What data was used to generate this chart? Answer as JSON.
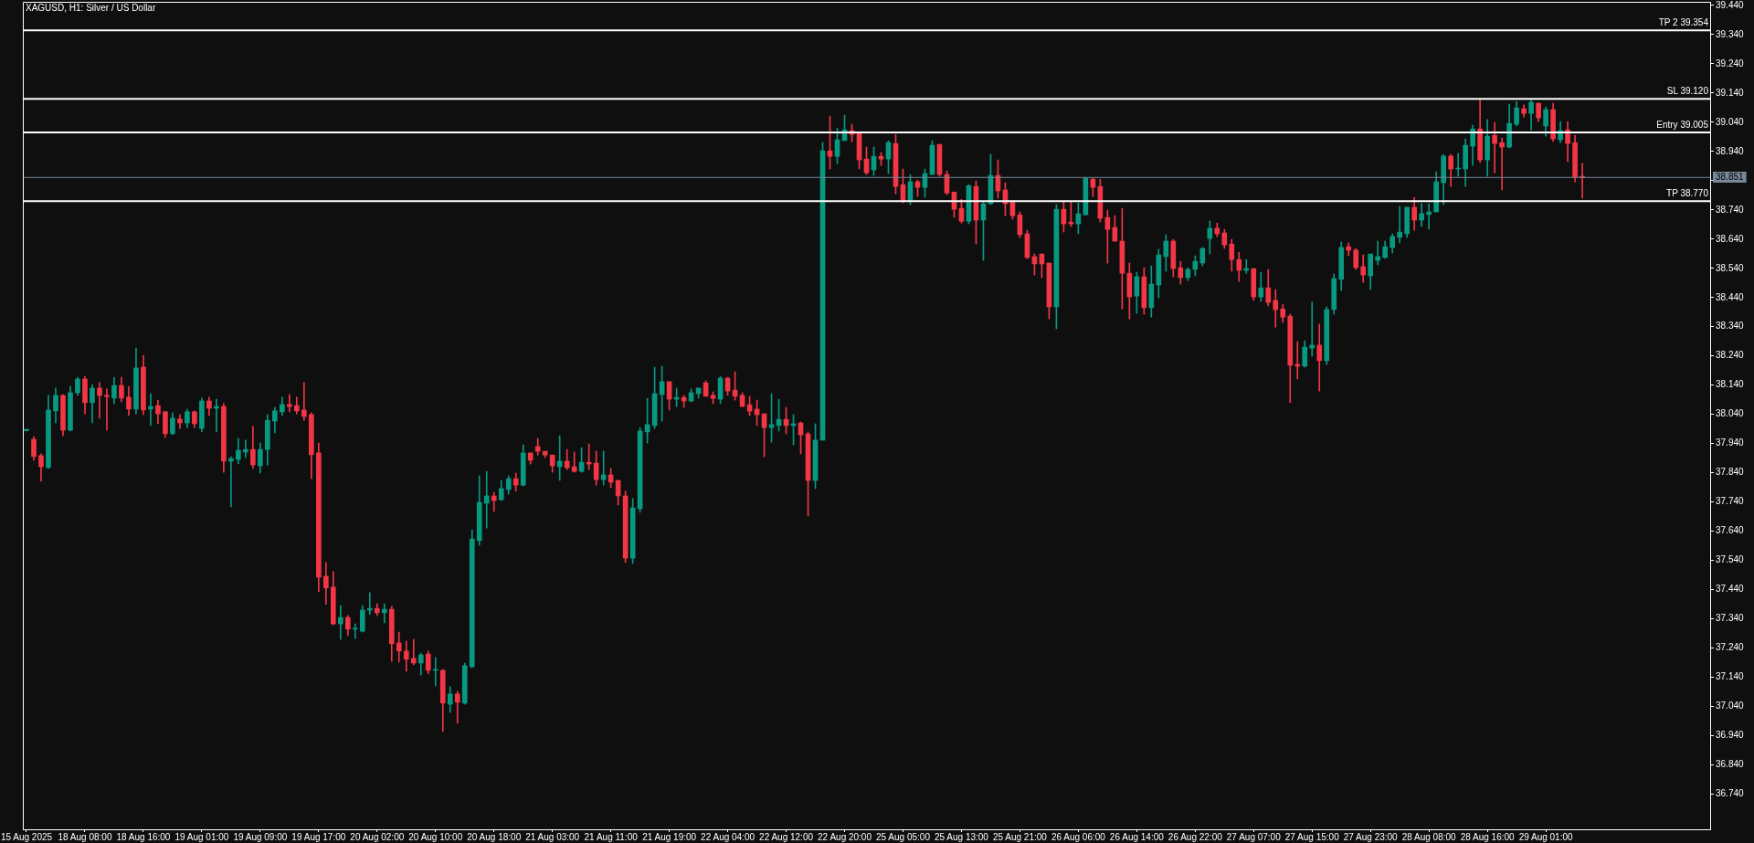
{
  "chart_data": {
    "type": "candlestick",
    "title": "XAGUSD, H1: Silver / US Dollar",
    "categories": [
      "15 Aug 2025",
      null,
      null,
      null,
      null,
      null,
      null,
      null,
      "18 Aug 08:00",
      null,
      null,
      null,
      null,
      null,
      null,
      null,
      "18 Aug 16:00",
      null,
      null,
      null,
      null,
      null,
      null,
      null,
      "19 Aug 01:00",
      null,
      null,
      null,
      null,
      null,
      null,
      null,
      "19 Aug 09:00",
      null,
      null,
      null,
      null,
      null,
      null,
      null,
      "19 Aug 17:00",
      null,
      null,
      null,
      null,
      null,
      null,
      null,
      "20 Aug 02:00",
      null,
      null,
      null,
      null,
      null,
      null,
      null,
      "20 Aug 10:00",
      null,
      null,
      null,
      null,
      null,
      null,
      null,
      "20 Aug 18:00",
      null,
      null,
      null,
      null,
      null,
      null,
      null,
      "21 Aug 03:00",
      null,
      null,
      null,
      null,
      null,
      null,
      null,
      "21 Aug 11:00",
      null,
      null,
      null,
      null,
      null,
      null,
      null,
      "21 Aug 19:00",
      null,
      null,
      null,
      null,
      null,
      null,
      null,
      "22 Aug 04:00",
      null,
      null,
      null,
      null,
      null,
      null,
      null,
      "22 Aug 12:00",
      null,
      null,
      null,
      null,
      null,
      null,
      null,
      "22 Aug 20:00",
      null,
      null,
      null,
      null,
      null,
      null,
      null,
      "25 Aug 05:00",
      null,
      null,
      null,
      null,
      null,
      null,
      null,
      "25 Aug 13:00",
      null,
      null,
      null,
      null,
      null,
      null,
      null,
      "25 Aug 21:00",
      null,
      null,
      null,
      null,
      null,
      null,
      null,
      "26 Aug 06:00",
      null,
      null,
      null,
      null,
      null,
      null,
      null,
      "26 Aug 14:00",
      null,
      null,
      null,
      null,
      null,
      null,
      null,
      "26 Aug 22:00",
      null,
      null,
      null,
      null,
      null,
      null,
      null,
      "27 Aug 07:00",
      null,
      null,
      null,
      null,
      null,
      null,
      null,
      "27 Aug 15:00",
      null,
      null,
      null,
      null,
      null,
      null,
      null,
      "27 Aug 23:00",
      null,
      null,
      null,
      null,
      null,
      null,
      null,
      "28 Aug 08:00",
      null,
      null,
      null,
      null,
      null,
      null,
      null,
      "28 Aug 16:00",
      null,
      null,
      null,
      null,
      null,
      null,
      null,
      "29 Aug 01:00",
      null,
      null,
      null,
      null,
      null,
      null,
      null,
      null,
      null,
      null,
      null,
      null,
      null,
      null,
      null,
      null,
      null,
      null,
      null,
      null,
      null,
      null
    ],
    "ohlc": [
      [
        37.984,
        37.989,
        37.984,
        37.989
      ],
      [
        37.955,
        37.964,
        37.883,
        37.896
      ],
      [
        37.899,
        37.905,
        37.811,
        37.861
      ],
      [
        37.858,
        38.105,
        37.855,
        38.055
      ],
      [
        38.052,
        38.13,
        38.011,
        38.105
      ],
      [
        38.105,
        38.108,
        37.967,
        37.986
      ],
      [
        37.986,
        38.136,
        37.983,
        38.114
      ],
      [
        38.114,
        38.167,
        38.105,
        38.161
      ],
      [
        38.161,
        38.17,
        38.042,
        38.08
      ],
      [
        38.08,
        38.142,
        38.011,
        38.13
      ],
      [
        38.13,
        38.149,
        38.027,
        38.105
      ],
      [
        38.105,
        38.127,
        37.986,
        38.101
      ],
      [
        38.096,
        38.167,
        38.077,
        38.139
      ],
      [
        38.139,
        38.167,
        38.083,
        38.096
      ],
      [
        38.099,
        38.136,
        38.036,
        38.058
      ],
      [
        38.058,
        38.267,
        38.042,
        38.199
      ],
      [
        38.202,
        38.242,
        38.039,
        38.055
      ],
      [
        38.058,
        38.111,
        38.002,
        38.067
      ],
      [
        38.07,
        38.089,
        38.008,
        38.042
      ],
      [
        38.049,
        38.05,
        37.961,
        37.974
      ],
      [
        37.974,
        38.046,
        37.971,
        38.027
      ],
      [
        38.024,
        38.039,
        37.992,
        38.011
      ],
      [
        38.011,
        38.058,
        37.995,
        38.049
      ],
      [
        38.049,
        38.052,
        37.995,
        38.008
      ],
      [
        37.992,
        38.096,
        37.98,
        38.086
      ],
      [
        38.086,
        38.099,
        38.036,
        38.061
      ],
      [
        38.061,
        38.092,
        37.98,
        38.067
      ],
      [
        38.067,
        38.077,
        37.842,
        37.88
      ],
      [
        37.88,
        37.895,
        37.724,
        37.889
      ],
      [
        37.886,
        37.958,
        37.871,
        37.917
      ],
      [
        37.911,
        37.952,
        37.892,
        37.92
      ],
      [
        37.92,
        37.999,
        37.855,
        37.867
      ],
      [
        37.864,
        37.942,
        37.839,
        37.92
      ],
      [
        37.92,
        38.039,
        37.867,
        38.02
      ],
      [
        38.017,
        38.064,
        37.977,
        38.052
      ],
      [
        38.049,
        38.099,
        38.036,
        38.074
      ],
      [
        38.074,
        38.108,
        38.049,
        38.067
      ],
      [
        38.07,
        38.099,
        38.042,
        38.052
      ],
      [
        38.055,
        38.149,
        38.02,
        38.033
      ],
      [
        38.039,
        38.046,
        37.82,
        37.902
      ],
      [
        37.908,
        37.942,
        37.433,
        37.483
      ],
      [
        37.486,
        37.533,
        37.39,
        37.446
      ],
      [
        37.449,
        37.502,
        37.32,
        37.323
      ],
      [
        37.323,
        37.386,
        37.27,
        37.345
      ],
      [
        37.345,
        37.352,
        37.283,
        37.305
      ],
      [
        37.305,
        37.323,
        37.273,
        37.308
      ],
      [
        37.298,
        37.386,
        37.295,
        37.37
      ],
      [
        37.37,
        37.43,
        37.355,
        37.376
      ],
      [
        37.376,
        37.392,
        37.352,
        37.361
      ],
      [
        37.361,
        37.392,
        37.327,
        37.373
      ],
      [
        37.373,
        37.383,
        37.195,
        37.255
      ],
      [
        37.258,
        37.295,
        37.192,
        37.23
      ],
      [
        37.23,
        37.264,
        37.161,
        37.202
      ],
      [
        37.205,
        37.27,
        37.183,
        37.189
      ],
      [
        37.189,
        37.223,
        37.148,
        37.217
      ],
      [
        37.22,
        37.23,
        37.152,
        37.164
      ],
      [
        37.164,
        37.208,
        37.111,
        37.167
      ],
      [
        37.164,
        37.167,
        36.955,
        37.052
      ],
      [
        37.048,
        37.108,
        37.02,
        37.083
      ],
      [
        37.083,
        37.092,
        36.983,
        37.055
      ],
      [
        37.052,
        37.189,
        37.048,
        37.18
      ],
      [
        37.177,
        37.645,
        37.173,
        37.614
      ],
      [
        37.608,
        37.83,
        37.592,
        37.739
      ],
      [
        37.736,
        37.845,
        37.651,
        37.761
      ],
      [
        37.761,
        37.773,
        37.708,
        37.745
      ],
      [
        37.748,
        37.814,
        37.745,
        37.786
      ],
      [
        37.783,
        37.83,
        37.767,
        37.82
      ],
      [
        37.82,
        37.839,
        37.777,
        37.798
      ],
      [
        37.798,
        37.936,
        37.795,
        37.908
      ],
      [
        37.908,
        37.908,
        37.87,
        37.883
      ],
      [
        37.93,
        37.958,
        37.901,
        37.914
      ],
      [
        37.914,
        37.914,
        37.892,
        37.901
      ],
      [
        37.901,
        37.901,
        37.842,
        37.864
      ],
      [
        37.861,
        37.967,
        37.814,
        37.88
      ],
      [
        37.88,
        37.92,
        37.851,
        37.858
      ],
      [
        37.861,
        37.911,
        37.842,
        37.845
      ],
      [
        37.845,
        37.926,
        37.842,
        37.876
      ],
      [
        37.876,
        37.939,
        37.851,
        37.87
      ],
      [
        37.873,
        37.914,
        37.798,
        37.817
      ],
      [
        37.817,
        37.914,
        37.798,
        37.833
      ],
      [
        37.833,
        37.855,
        37.789,
        37.808
      ],
      [
        37.814,
        37.814,
        37.73,
        37.761
      ],
      [
        37.761,
        37.777,
        37.533,
        37.548
      ],
      [
        37.548,
        37.752,
        37.53,
        37.72
      ],
      [
        37.717,
        37.995,
        37.705,
        37.983
      ],
      [
        37.98,
        38.095,
        37.942,
        38.005
      ],
      [
        38.002,
        38.202,
        37.992,
        38.111
      ],
      [
        38.108,
        38.205,
        38.017,
        38.152
      ],
      [
        38.152,
        38.152,
        38.055,
        38.092
      ],
      [
        38.092,
        38.13,
        38.067,
        38.098
      ],
      [
        38.098,
        38.105,
        38.064,
        38.086
      ],
      [
        38.086,
        38.127,
        38.083,
        38.114
      ],
      [
        38.111,
        38.13,
        38.095,
        38.13
      ],
      [
        38.148,
        38.155,
        38.102,
        38.102
      ],
      [
        38.105,
        38.117,
        38.077,
        38.095
      ],
      [
        38.092,
        38.17,
        38.077,
        38.164
      ],
      [
        38.164,
        38.167,
        38.105,
        38.12
      ],
      [
        38.123,
        38.186,
        38.089,
        38.102
      ],
      [
        38.105,
        38.114,
        38.067,
        38.067
      ],
      [
        38.073,
        38.102,
        38.036,
        38.051
      ],
      [
        38.058,
        38.089,
        38.002,
        38.039
      ],
      [
        38.042,
        38.042,
        37.895,
        37.995
      ],
      [
        37.995,
        38.111,
        37.945,
        38.005
      ],
      [
        38.002,
        38.092,
        37.983,
        38.023
      ],
      [
        38.023,
        38.064,
        37.973,
        38.002
      ],
      [
        38.002,
        38.039,
        37.936,
        38.008
      ],
      [
        38.011,
        38.014,
        37.905,
        37.97
      ],
      [
        37.973,
        37.98,
        37.692,
        37.814
      ],
      [
        37.814,
        38.008,
        37.786,
        37.952
      ],
      [
        37.952,
        38.97,
        37.952,
        38.942
      ],
      [
        38.942,
        39.061,
        38.88,
        38.923
      ],
      [
        38.923,
        39.02,
        38.898,
        38.98
      ],
      [
        38.977,
        39.064,
        38.977,
        39.014
      ],
      [
        39.011,
        39.033,
        38.973,
        38.998
      ],
      [
        39.001,
        39.001,
        38.88,
        38.911
      ],
      [
        38.914,
        38.955,
        38.861,
        38.867
      ],
      [
        38.877,
        38.955,
        38.858,
        38.923
      ],
      [
        38.923,
        38.936,
        38.892,
        38.914
      ],
      [
        38.914,
        38.977,
        38.864,
        38.97
      ],
      [
        38.967,
        38.998,
        38.795,
        38.82
      ],
      [
        38.826,
        38.88,
        38.764,
        38.77
      ],
      [
        38.77,
        38.861,
        38.758,
        38.836
      ],
      [
        38.836,
        38.842,
        38.786,
        38.817
      ],
      [
        38.817,
        38.88,
        38.783,
        38.864
      ],
      [
        38.861,
        38.977,
        38.861,
        38.961
      ],
      [
        38.964,
        38.964,
        38.855,
        38.861
      ],
      [
        38.861,
        38.873,
        38.792,
        38.798
      ],
      [
        38.801,
        38.801,
        38.714,
        38.742
      ],
      [
        38.745,
        38.776,
        38.695,
        38.701
      ],
      [
        38.701,
        38.826,
        38.692,
        38.823
      ],
      [
        38.82,
        38.839,
        38.623,
        38.705
      ],
      [
        38.705,
        38.77,
        38.567,
        38.761
      ],
      [
        38.761,
        38.93,
        38.758,
        38.858
      ],
      [
        38.858,
        38.911,
        38.78,
        38.805
      ],
      [
        38.808,
        38.833,
        38.72,
        38.761
      ],
      [
        38.77,
        38.77,
        38.708,
        38.72
      ],
      [
        38.723,
        38.733,
        38.645,
        38.655
      ],
      [
        38.658,
        38.67,
        38.573,
        38.577
      ],
      [
        38.58,
        38.589,
        38.517,
        38.555
      ],
      [
        38.589,
        38.589,
        38.508,
        38.555
      ],
      [
        38.558,
        38.558,
        38.367,
        38.408
      ],
      [
        38.408,
        38.758,
        38.333,
        38.742
      ],
      [
        38.742,
        38.77,
        38.664,
        38.692
      ],
      [
        38.698,
        38.77,
        38.683,
        38.692
      ],
      [
        38.692,
        38.764,
        38.658,
        38.727
      ],
      [
        38.723,
        38.851,
        38.723,
        38.848
      ],
      [
        38.845,
        38.848,
        38.786,
        38.817
      ],
      [
        38.82,
        38.845,
        38.698,
        38.711
      ],
      [
        38.714,
        38.739,
        38.558,
        38.673
      ],
      [
        38.68,
        38.72,
        38.633,
        38.633
      ],
      [
        38.633,
        38.745,
        38.401,
        38.523
      ],
      [
        38.523,
        38.558,
        38.367,
        38.442
      ],
      [
        38.445,
        38.526,
        38.386,
        38.511
      ],
      [
        38.511,
        38.542,
        38.383,
        38.405
      ],
      [
        38.405,
        38.548,
        38.373,
        38.486
      ],
      [
        38.483,
        38.605,
        38.439,
        38.586
      ],
      [
        38.58,
        38.655,
        38.53,
        38.633
      ],
      [
        38.633,
        38.639,
        38.511,
        38.539
      ],
      [
        38.542,
        38.564,
        38.486,
        38.508
      ],
      [
        38.508,
        38.542,
        38.498,
        38.536
      ],
      [
        38.536,
        38.583,
        38.514,
        38.564
      ],
      [
        38.558,
        38.611,
        38.548,
        38.608
      ],
      [
        38.642,
        38.702,
        38.589,
        38.677
      ],
      [
        38.677,
        38.695,
        38.648,
        38.658
      ],
      [
        38.661,
        38.673,
        38.608,
        38.62
      ],
      [
        38.623,
        38.639,
        38.53,
        38.57
      ],
      [
        38.57,
        38.595,
        38.495,
        38.533
      ],
      [
        38.533,
        38.57,
        38.523,
        38.539
      ],
      [
        38.539,
        38.539,
        38.43,
        38.442
      ],
      [
        38.442,
        38.526,
        38.427,
        38.473
      ],
      [
        38.473,
        38.536,
        38.411,
        38.423
      ],
      [
        38.43,
        38.467,
        38.339,
        38.398
      ],
      [
        38.401,
        38.417,
        38.355,
        38.373
      ],
      [
        38.376,
        38.383,
        38.08,
        38.208
      ],
      [
        38.211,
        38.289,
        38.161,
        38.205
      ],
      [
        38.205,
        38.292,
        38.202,
        38.27
      ],
      [
        38.267,
        38.424,
        38.239,
        38.277
      ],
      [
        38.277,
        38.349,
        38.12,
        38.224
      ],
      [
        38.224,
        38.408,
        38.211,
        38.399
      ],
      [
        38.399,
        38.521,
        38.383,
        38.505
      ],
      [
        38.502,
        38.63,
        38.464,
        38.611
      ],
      [
        38.614,
        38.627,
        38.583,
        38.602
      ],
      [
        38.602,
        38.608,
        38.536,
        38.542
      ],
      [
        38.546,
        38.586,
        38.492,
        38.517
      ],
      [
        38.514,
        38.589,
        38.467,
        38.589
      ],
      [
        38.567,
        38.633,
        38.552,
        38.58
      ],
      [
        38.577,
        38.633,
        38.574,
        38.614
      ],
      [
        38.611,
        38.658,
        38.592,
        38.649
      ],
      [
        38.646,
        38.752,
        38.627,
        38.664
      ],
      [
        38.658,
        38.749,
        38.646,
        38.749
      ],
      [
        38.749,
        38.783,
        38.67,
        38.705
      ],
      [
        38.705,
        38.761,
        38.683,
        38.727
      ],
      [
        38.724,
        38.761,
        38.674,
        38.733
      ],
      [
        38.733,
        38.87,
        38.733,
        38.836
      ],
      [
        38.833,
        38.93,
        38.758,
        38.924
      ],
      [
        38.924,
        38.93,
        38.82,
        38.88
      ],
      [
        38.88,
        38.933,
        38.855,
        38.883
      ],
      [
        38.88,
        38.983,
        38.82,
        38.961
      ],
      [
        38.958,
        39.03,
        38.892,
        39.017
      ],
      [
        39.017,
        39.117,
        38.902,
        38.911
      ],
      [
        38.911,
        39.049,
        38.855,
        38.992
      ],
      [
        38.995,
        39.039,
        38.867,
        38.967
      ],
      [
        38.97,
        38.986,
        38.808,
        38.955
      ],
      [
        38.955,
        39.102,
        38.952,
        39.036
      ],
      [
        39.033,
        39.111,
        39.027,
        39.089
      ],
      [
        39.086,
        39.099,
        39.058,
        39.07
      ],
      [
        39.07,
        39.117,
        39.014,
        39.108
      ],
      [
        39.105,
        39.105,
        39.042,
        39.055
      ],
      [
        39.027,
        39.092,
        38.992,
        39.083
      ],
      [
        39.083,
        39.105,
        38.974,
        38.983
      ],
      [
        38.98,
        39.042,
        38.97,
        39.011
      ],
      [
        39.014,
        39.042,
        38.905,
        38.967
      ],
      [
        38.97,
        38.995,
        38.836,
        38.852
      ],
      [
        38.855,
        38.899,
        38.78,
        38.851
      ],
      null,
      null,
      null,
      null,
      null,
      null,
      null,
      null,
      null,
      null,
      null,
      null,
      null,
      null,
      null,
      null,
      null
    ],
    "colors": [
      "#089981",
      "#f23645",
      "#f23645",
      "#089981",
      "#089981",
      "#f23645",
      "#089981",
      "#089981",
      "#f23645",
      "#089981",
      "#f23645",
      "#f23645",
      "#089981",
      "#f23645",
      "#f23645",
      "#089981",
      "#f23645",
      "#089981",
      "#f23645",
      "#f23645",
      "#089981",
      "#f23645",
      "#089981",
      "#f23645",
      "#089981",
      "#f23645",
      "#089981",
      "#f23645",
      "#089981",
      "#089981",
      "#089981",
      "#f23645",
      "#089981",
      "#089981",
      "#089981",
      "#089981",
      "#f23645",
      "#f23645",
      "#f23645",
      "#f23645",
      "#f23645",
      "#f23645",
      "#f23645",
      "#089981",
      "#f23645",
      "#089981",
      "#089981",
      "#089981",
      "#f23645",
      "#089981",
      "#f23645",
      "#f23645",
      "#f23645",
      "#f23645",
      "#089981",
      "#f23645",
      "#089981",
      "#f23645",
      "#089981",
      "#f23645",
      "#089981",
      "#089981",
      "#089981",
      "#089981",
      "#f23645",
      "#089981",
      "#089981",
      "#f23645",
      "#089981",
      "#f23645",
      "#f23645",
      "#f23645",
      "#f23645",
      "#089981",
      "#f23645",
      "#f23645",
      "#089981",
      "#f23645",
      "#f23645",
      "#089981",
      "#f23645",
      "#f23645",
      "#f23645",
      "#089981",
      "#089981",
      "#089981",
      "#089981",
      "#089981",
      "#f23645",
      "#089981",
      "#f23645",
      "#089981",
      "#089981",
      "#f23645",
      "#f23645",
      "#089981",
      "#f23645",
      "#f23645",
      "#f23645",
      "#f23645",
      "#f23645",
      "#f23645",
      "#089981",
      "#089981",
      "#f23645",
      "#089981",
      "#f23645",
      "#f23645",
      "#089981",
      "#089981",
      "#f23645",
      "#089981",
      "#089981",
      "#f23645",
      "#f23645",
      "#f23645",
      "#089981",
      "#f23645",
      "#089981",
      "#f23645",
      "#f23645",
      "#089981",
      "#f23645",
      "#089981",
      "#089981",
      "#f23645",
      "#f23645",
      "#f23645",
      "#f23645",
      "#089981",
      "#f23645",
      "#089981",
      "#089981",
      "#f23645",
      "#f23645",
      "#f23645",
      "#f23645",
      "#f23645",
      "#f23645",
      "#f23645",
      "#f23645",
      "#089981",
      "#f23645",
      "#f23645",
      "#089981",
      "#089981",
      "#f23645",
      "#f23645",
      "#f23645",
      "#f23645",
      "#f23645",
      "#f23645",
      "#089981",
      "#f23645",
      "#089981",
      "#089981",
      "#089981",
      "#f23645",
      "#f23645",
      "#089981",
      "#089981",
      "#089981",
      "#089981",
      "#f23645",
      "#f23645",
      "#f23645",
      "#f23645",
      "#089981",
      "#f23645",
      "#089981",
      "#f23645",
      "#f23645",
      "#f23645",
      "#f23645",
      "#f23645",
      "#089981",
      "#089981",
      "#f23645",
      "#089981",
      "#089981",
      "#089981",
      "#f23645",
      "#f23645",
      "#f23645",
      "#089981",
      "#089981",
      "#089981",
      "#089981",
      "#089981",
      "#089981",
      "#f23645",
      "#089981",
      "#089981",
      "#089981",
      "#089981",
      "#f23645",
      "#089981",
      "#089981",
      "#089981",
      "#f23645",
      "#089981",
      "#f23645",
      "#f23645",
      "#089981",
      "#089981",
      "#f23645",
      "#089981",
      "#f23645",
      "#089981",
      "#f23645",
      "#089981",
      "#f23645",
      "#f23645",
      "#f23645",
      null,
      null,
      null,
      null,
      null,
      null,
      null,
      null,
      null,
      null,
      null,
      null,
      null,
      null,
      null,
      null,
      null
    ],
    "ylim": [
      36.62,
      39.452
    ],
    "yticks": [
      {
        "value": 36.74,
        "label": "36.740"
      },
      {
        "value": 36.84,
        "label": "36.840"
      },
      {
        "value": 36.94,
        "label": "36.940"
      },
      {
        "value": 37.04,
        "label": "37.040"
      },
      {
        "value": 37.14,
        "label": "37.140"
      },
      {
        "value": 37.24,
        "label": "37.240"
      },
      {
        "value": 37.34,
        "label": "37.340"
      },
      {
        "value": 37.44,
        "label": "37.440"
      },
      {
        "value": 37.54,
        "label": "37.540"
      },
      {
        "value": 37.64,
        "label": "37.640"
      },
      {
        "value": 37.74,
        "label": "37.740"
      },
      {
        "value": 37.84,
        "label": "37.840"
      },
      {
        "value": 37.94,
        "label": "37.940"
      },
      {
        "value": 38.04,
        "label": "38.040"
      },
      {
        "value": 38.14,
        "label": "38.140"
      },
      {
        "value": 38.24,
        "label": "38.240"
      },
      {
        "value": 38.34,
        "label": "38.340"
      },
      {
        "value": 38.44,
        "label": "38.440"
      },
      {
        "value": 38.54,
        "label": "38.540"
      },
      {
        "value": 38.64,
        "label": "38.640"
      },
      {
        "value": 38.74,
        "label": "38.740"
      },
      {
        "value": 38.84,
        "label": null
      },
      {
        "value": 38.94,
        "label": "38.940"
      },
      {
        "value": 39.04,
        "label": "39.040"
      },
      {
        "value": 39.14,
        "label": "39.140"
      },
      {
        "value": 39.24,
        "label": "39.240"
      },
      {
        "value": 39.34,
        "label": "39.340"
      },
      {
        "value": 39.44,
        "label": "39.440"
      }
    ],
    "ref_lines": [
      {
        "axis": "y",
        "value": 39.354,
        "label": "TP 2 39.354",
        "color": "#ffffff"
      },
      {
        "axis": "y",
        "value": 39.12,
        "label": "SL 39.120",
        "color": "#ffffff"
      },
      {
        "axis": "y",
        "value": 39.005,
        "label": "Entry 39.005",
        "color": "#ffffff"
      },
      {
        "axis": "y",
        "value": 38.77,
        "label": "TP 38.770",
        "color": "#ffffff"
      },
      {
        "axis": "y",
        "value": 38.851,
        "color": "#778899"
      }
    ],
    "annotations": [
      {
        "text": "38.851",
        "y": 38.851
      }
    ]
  }
}
